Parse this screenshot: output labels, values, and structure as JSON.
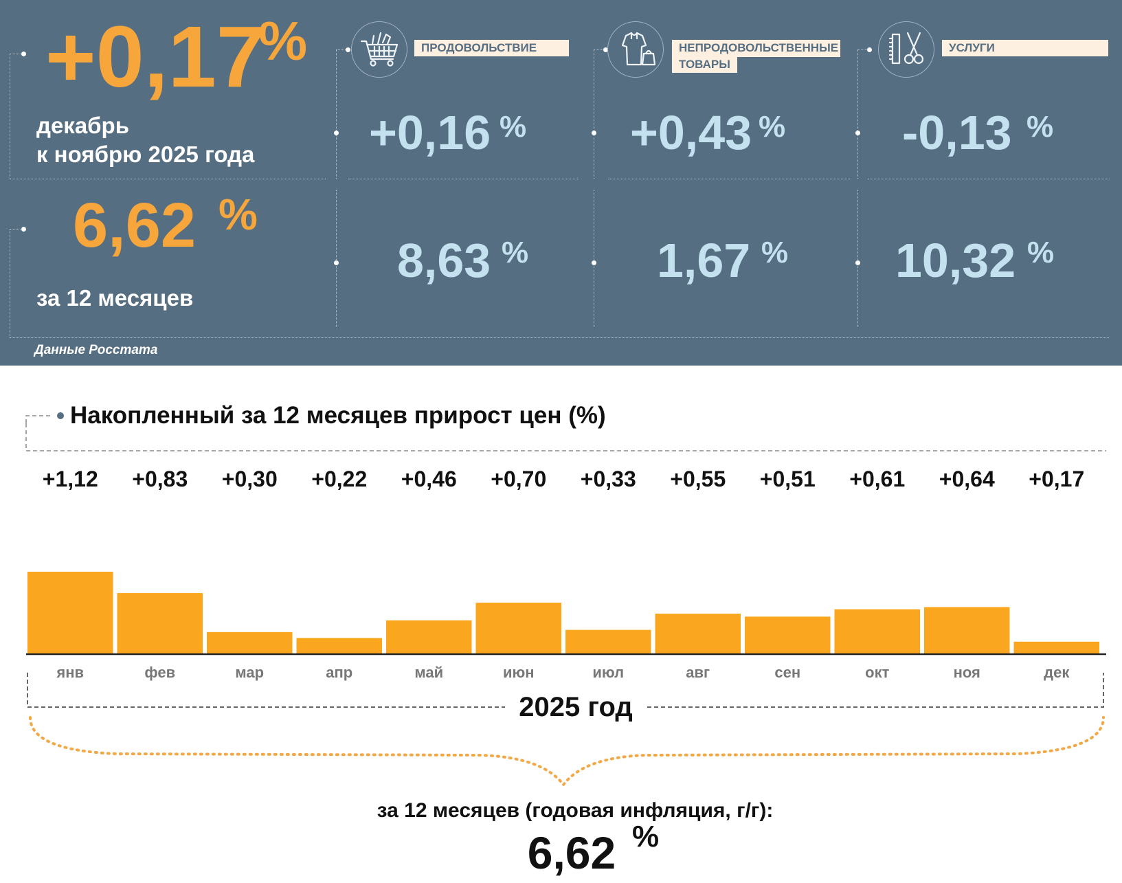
{
  "summary": {
    "month_value": "+0,17",
    "month_unit": "%",
    "month_caption_1": "декабрь",
    "month_caption_2": "к ноябрю 2025 года",
    "year_value": "6,62",
    "year_unit": "%",
    "year_caption": "за 12 месяцев",
    "source": "Данные Росстата"
  },
  "categories": [
    {
      "label": "ПРОДОВОЛЬСТВИЕ",
      "icon": "shopping-cart-icon",
      "month_value": "+0,16",
      "year_value": "8,63",
      "unit": "%"
    },
    {
      "label": "НЕПРОДОВОЛЬСТВЕННЫЕ ТОВАРЫ",
      "label_line1": "НЕПРОДОВОЛЬСТВЕННЫЕ",
      "label_line2": "ТОВАРЫ",
      "icon": "clothing-bag-icon",
      "month_value": "+0,43",
      "year_value": "1,67",
      "unit": "%"
    },
    {
      "label": "УСЛУГИ",
      "icon": "scissors-comb-icon",
      "month_value": "-0,13",
      "year_value": "10,32",
      "unit": "%"
    }
  ],
  "colors": {
    "panel": "#566e82",
    "accent_orange": "#f7a63c",
    "light_blue": "#c4e1ef",
    "bar": "#fba61f"
  },
  "chart_data": {
    "type": "bar",
    "title": "Накопленный за 12 месяцев прирост цен (%)",
    "categories": [
      "янв",
      "фев",
      "мар",
      "апр",
      "май",
      "июн",
      "июл",
      "авг",
      "сен",
      "окт",
      "ноя",
      "дек"
    ],
    "values": [
      1.12,
      0.83,
      0.3,
      0.22,
      0.46,
      0.7,
      0.33,
      0.55,
      0.51,
      0.61,
      0.64,
      0.17
    ],
    "value_labels": [
      "+1,12",
      "+0,83",
      "+0,30",
      "+0,22",
      "+0,46",
      "+0,70",
      "+0,33",
      "+0,55",
      "+0,51",
      "+0,61",
      "+0,64",
      "+0,17"
    ],
    "xlabel": "2025 год",
    "ylabel": "",
    "ylim": [
      0,
      1.12
    ],
    "grid": false,
    "footer_caption": "за 12 месяцев (годовая инфляция, г/г):",
    "footer_value": "6,62",
    "footer_unit": "%"
  }
}
